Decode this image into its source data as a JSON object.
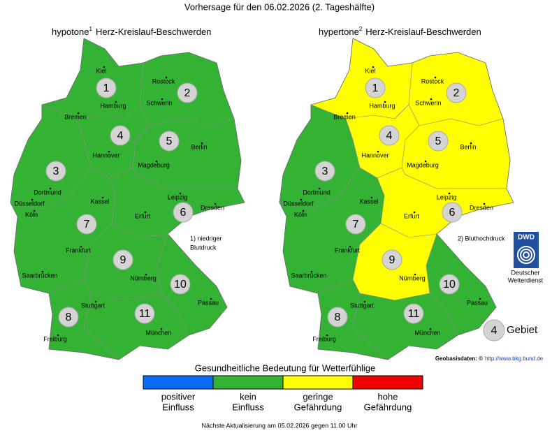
{
  "title": "Vorhersage für den 06.02.2026 (2. Tageshälfte)",
  "maps": [
    {
      "title": "hypotone",
      "superscript": "1",
      "subtitle": "Herz-Kreislauf-Beschwerden",
      "note": [
        "1) niedriger",
        "Blutdruck"
      ],
      "regions": [
        {
          "number": 1,
          "color": "#33b233"
        },
        {
          "number": 2,
          "color": "#33b233"
        },
        {
          "number": 3,
          "color": "#33b233"
        },
        {
          "number": 4,
          "color": "#33b233"
        },
        {
          "number": 5,
          "color": "#33b233"
        },
        {
          "number": 6,
          "color": "#33b233"
        },
        {
          "number": 7,
          "color": "#33b233"
        },
        {
          "number": 8,
          "color": "#33b233"
        },
        {
          "number": 9,
          "color": "#33b233"
        },
        {
          "number": 10,
          "color": "#33b233"
        },
        {
          "number": 11,
          "color": "#33b233"
        }
      ]
    },
    {
      "title": "hypertone",
      "superscript": "2",
      "subtitle": "Herz-Kreislauf-Beschwerden",
      "note": [
        "2) Bluthochdruck"
      ],
      "regions": [
        {
          "number": 1,
          "color": "#ffff00"
        },
        {
          "number": 2,
          "color": "#ffff00"
        },
        {
          "number": 3,
          "color": "#33b233"
        },
        {
          "number": 4,
          "color": "#ffff00"
        },
        {
          "number": 5,
          "color": "#ffff00"
        },
        {
          "number": 6,
          "color": "#ffff00"
        },
        {
          "number": 7,
          "color": "#33b233"
        },
        {
          "number": 8,
          "color": "#33b233"
        },
        {
          "number": 9,
          "color": "#ffff00"
        },
        {
          "number": 10,
          "color": "#33b233"
        },
        {
          "number": 11,
          "color": "#33b233"
        }
      ]
    }
  ],
  "cities": [
    "Kiel",
    "Rostock",
    "Hamburg",
    "Schwerin",
    "Bremen",
    "Hannover",
    "Berlin",
    "Magdeburg",
    "Dortmund",
    "Düsseldorf",
    "Köln",
    "Kassel",
    "Leipzig",
    "Dresden",
    "Erfurt",
    "Frankfurt",
    "Saarbrücken",
    "Nürnberg",
    "Stuttgart",
    "Passau",
    "Freiburg",
    "München"
  ],
  "legend": {
    "title": "Gesundheitliche Bedeutung für Wetterfühlige",
    "items": [
      {
        "label": [
          "positiver",
          "Einfluss"
        ],
        "color": "#0a6cf5"
      },
      {
        "label": [
          "kein",
          "Einfluss"
        ],
        "color": "#33b233"
      },
      {
        "label": [
          "geringe",
          "Gefährdung"
        ],
        "color": "#ffff00"
      },
      {
        "label": [
          "hohe",
          "Gefährdung"
        ],
        "color": "#ee0000"
      }
    ]
  },
  "logo": {
    "text": "DWD",
    "caption": [
      "Deutscher",
      "Wetterdienst"
    ]
  },
  "key": {
    "number": 4,
    "label": "Gebiet"
  },
  "credit": {
    "label": "Geobasisdaten: ©",
    "link": "http://www.bkg.bund.de"
  },
  "footer": "Nächste Aktualisierung am 05.02.2026 gegen 11.00 Uhr"
}
